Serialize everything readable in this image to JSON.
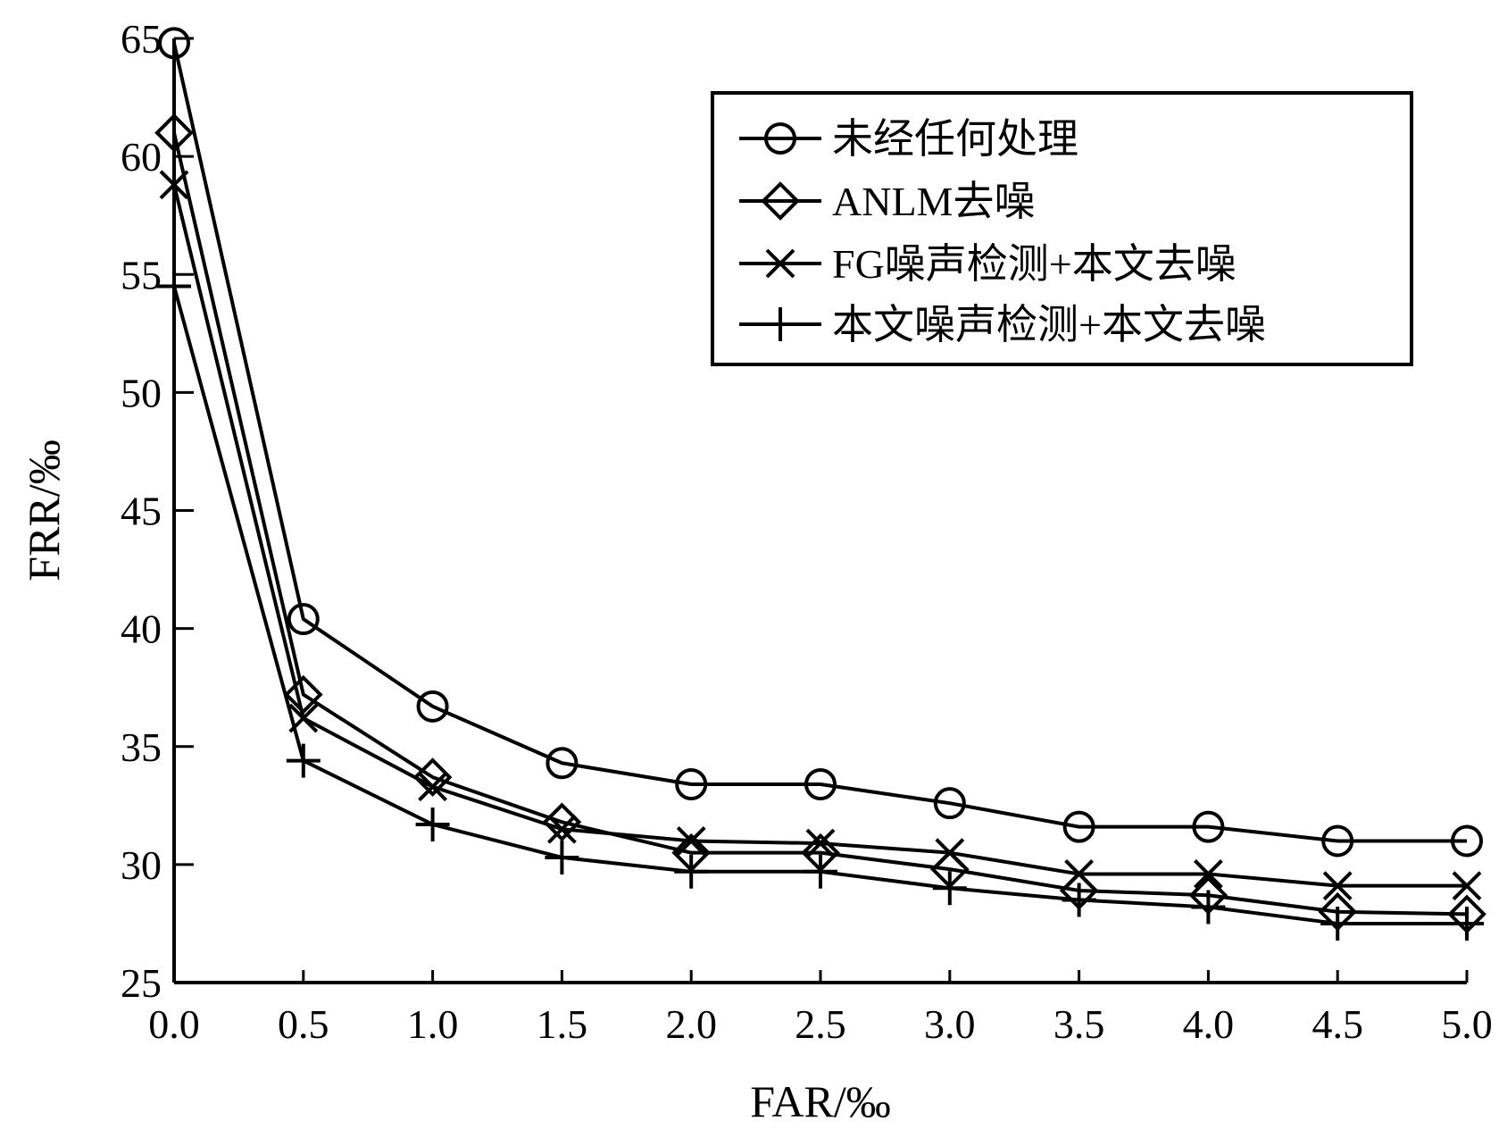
{
  "chart_data": {
    "type": "line",
    "xlabel": "FAR/‰",
    "ylabel": "FRR/‰",
    "xlim": [
      0,
      5
    ],
    "ylim": [
      25,
      65
    ],
    "x_ticks": [
      "0.0",
      "0.5",
      "1.0",
      "1.5",
      "2.0",
      "2.5",
      "3.0",
      "3.5",
      "4.0",
      "4.5",
      "5.0"
    ],
    "y_ticks": [
      "25",
      "30",
      "35",
      "40",
      "45",
      "50",
      "55",
      "60",
      "65"
    ],
    "grid": false,
    "legend_position": "top-right",
    "x": [
      0,
      0.5,
      1.0,
      1.5,
      2.0,
      2.5,
      3.0,
      3.5,
      4.0,
      4.5,
      5.0
    ],
    "series": [
      {
        "name": "未经任何处理",
        "marker": "circle",
        "values": [
          64.8,
          40.4,
          36.7,
          34.3,
          33.4,
          33.4,
          32.6,
          31.6,
          31.6,
          31.0,
          31.0
        ]
      },
      {
        "name": "ANLM去噪",
        "marker": "diamond",
        "values": [
          61.0,
          37.2,
          33.7,
          31.8,
          30.5,
          30.5,
          29.8,
          28.9,
          28.7,
          28.0,
          27.9
        ]
      },
      {
        "name": "FG噪声检测+本文去噪",
        "marker": "x",
        "values": [
          58.8,
          36.2,
          33.3,
          31.5,
          31.0,
          30.9,
          30.5,
          29.6,
          29.6,
          29.1,
          29.1
        ]
      },
      {
        "name": "本文噪声检测+本文去噪",
        "marker": "plus",
        "values": [
          54.5,
          34.4,
          31.7,
          30.3,
          29.7,
          29.7,
          29.0,
          28.5,
          28.2,
          27.5,
          27.5
        ]
      }
    ]
  }
}
